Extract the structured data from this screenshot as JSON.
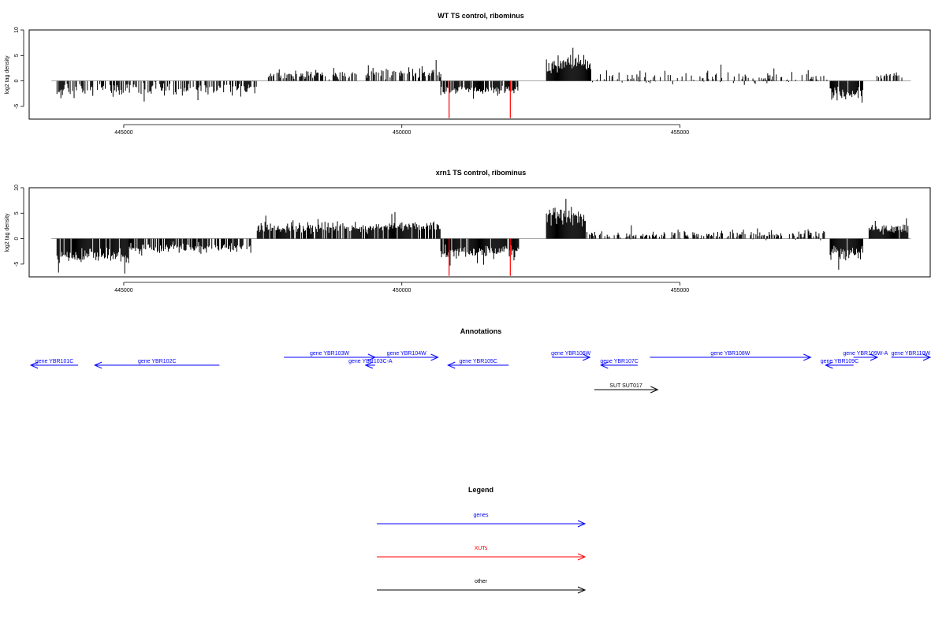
{
  "chart_data": [
    {
      "type": "bar",
      "title": "WT TS control, ribominus",
      "ylabel": "log2 tag density",
      "xlabel": "",
      "xlim": [
        443300,
        459500
      ],
      "ylim": [
        -7.5,
        10
      ],
      "yticks": [
        -5,
        0,
        5,
        10
      ],
      "xticks": [
        445000,
        450000,
        455000
      ],
      "xtick_labels": [
        "445000",
        "450000",
        "455000"
      ],
      "baseline": 0,
      "segments": [
        {
          "start": 443800,
          "end": 447400,
          "seed": 11,
          "density": 0.55,
          "mean": -1.6,
          "spread": 1.3,
          "min": -5.0,
          "max": 3.0
        },
        {
          "start": 447600,
          "end": 449200,
          "seed": 12,
          "density": 0.55,
          "mean": 1.2,
          "spread": 1.0,
          "min": 0,
          "max": 3.5
        },
        {
          "start": 449300,
          "end": 450700,
          "seed": 13,
          "density": 0.55,
          "mean": 1.6,
          "spread": 1.3,
          "min": 0,
          "max": 4.5
        },
        {
          "start": 450700,
          "end": 452100,
          "seed": 14,
          "density": 0.85,
          "mean": -1.8,
          "spread": 1.0,
          "min": -3.5,
          "max": 0
        },
        {
          "start": 452600,
          "end": 453400,
          "seed": 15,
          "density": 1.0,
          "mean": 3.6,
          "spread": 1.8,
          "min": 0.5,
          "max": 8.0
        },
        {
          "start": 453400,
          "end": 457700,
          "seed": 16,
          "density": 0.35,
          "mean": 0.6,
          "spread": 1.3,
          "min": -2.5,
          "max": 4.5
        },
        {
          "start": 457700,
          "end": 458300,
          "seed": 17,
          "density": 0.9,
          "mean": -2.6,
          "spread": 1.3,
          "min": -6.0,
          "max": 0
        },
        {
          "start": 458500,
          "end": 459000,
          "seed": 18,
          "density": 0.5,
          "mean": 1.0,
          "spread": 0.6,
          "min": 0,
          "max": 2.0
        }
      ],
      "highlights": [
        {
          "x": 450850,
          "y": -7.3,
          "color": "#ff0000"
        },
        {
          "x": 451950,
          "y": -7.3,
          "color": "#ff0000"
        }
      ]
    },
    {
      "type": "bar",
      "title": "xrn1 TS control, ribominus",
      "ylabel": "log2 tag density",
      "xlabel": "",
      "xlim": [
        443300,
        459500
      ],
      "ylim": [
        -7.5,
        10
      ],
      "yticks": [
        -5,
        0,
        5,
        10
      ],
      "xticks": [
        445000,
        450000,
        455000
      ],
      "xtick_labels": [
        "445000",
        "450000",
        "455000"
      ],
      "baseline": 0,
      "segments": [
        {
          "start": 443800,
          "end": 445100,
          "seed": 21,
          "density": 0.95,
          "mean": -3.3,
          "spread": 1.4,
          "min": -7.0,
          "max": 0
        },
        {
          "start": 445100,
          "end": 447300,
          "seed": 22,
          "density": 0.75,
          "mean": -1.8,
          "spread": 1.0,
          "min": -5.0,
          "max": 0
        },
        {
          "start": 447400,
          "end": 449400,
          "seed": 23,
          "density": 0.85,
          "mean": 2.1,
          "spread": 1.1,
          "min": 0,
          "max": 5.8
        },
        {
          "start": 449400,
          "end": 450700,
          "seed": 24,
          "density": 0.85,
          "mean": 2.4,
          "spread": 1.1,
          "min": 0,
          "max": 5.2
        },
        {
          "start": 450700,
          "end": 452100,
          "seed": 25,
          "density": 0.9,
          "mean": -2.5,
          "spread": 1.2,
          "min": -5.5,
          "max": 0
        },
        {
          "start": 452600,
          "end": 453300,
          "seed": 26,
          "density": 1.0,
          "mean": 4.3,
          "spread": 2.0,
          "min": 0.5,
          "max": 9.5
        },
        {
          "start": 453300,
          "end": 457600,
          "seed": 27,
          "density": 0.55,
          "mean": 0.8,
          "spread": 0.9,
          "min": -4.5,
          "max": 3.0
        },
        {
          "start": 457700,
          "end": 458300,
          "seed": 28,
          "density": 0.95,
          "mean": -3.0,
          "spread": 1.5,
          "min": -6.5,
          "max": 0
        },
        {
          "start": 458400,
          "end": 459100,
          "seed": 29,
          "density": 0.9,
          "mean": 2.0,
          "spread": 0.9,
          "min": 0,
          "max": 4.0
        }
      ],
      "highlights": [
        {
          "x": 450850,
          "y": -7.3,
          "color": "#ff0000"
        },
        {
          "x": 451950,
          "y": -7.3,
          "color": "#ff0000"
        }
      ]
    }
  ],
  "annotations": {
    "title": "Annotations",
    "gene_color": "#0000ff",
    "other_color": "#000000",
    "items": [
      {
        "label": "gene YBR101C",
        "start": 443330,
        "end": 444180,
        "row": 1,
        "strand": "-",
        "kind": "gene"
      },
      {
        "label": "gene YBR102C",
        "start": 444480,
        "end": 446720,
        "row": 1,
        "strand": "-",
        "kind": "gene"
      },
      {
        "label": "gene YBR103W",
        "start": 447880,
        "end": 449520,
        "row": 0,
        "strand": "+",
        "kind": "gene"
      },
      {
        "label": "gene YBR103C-A",
        "start": 449350,
        "end": 449520,
        "row": 1,
        "strand": "-",
        "kind": "gene"
      },
      {
        "label": "gene YBR104W",
        "start": 449520,
        "end": 450650,
        "row": 0,
        "strand": "+",
        "kind": "gene"
      },
      {
        "label": "gene YBR105C",
        "start": 450830,
        "end": 451920,
        "row": 1,
        "strand": "-",
        "kind": "gene"
      },
      {
        "label": "gene YBR106W",
        "start": 452700,
        "end": 453380,
        "row": 0,
        "strand": "+",
        "kind": "gene"
      },
      {
        "label": "gene YBR107C",
        "start": 453580,
        "end": 454240,
        "row": 1,
        "strand": "-",
        "kind": "gene"
      },
      {
        "label": "gene YBR108W",
        "start": 454460,
        "end": 457350,
        "row": 0,
        "strand": "+",
        "kind": "gene"
      },
      {
        "label": "gene YBR109C",
        "start": 457620,
        "end": 458120,
        "row": 1,
        "strand": "-",
        "kind": "gene"
      },
      {
        "label": "gene YBR109W-A",
        "start": 458120,
        "end": 458550,
        "row": 0,
        "strand": "+",
        "kind": "gene"
      },
      {
        "label": "gene YBR110W",
        "start": 458800,
        "end": 459500,
        "row": 0,
        "strand": "+",
        "kind": "gene"
      },
      {
        "label": "SUT SUT017",
        "start": 453460,
        "end": 454600,
        "row": 2,
        "strand": "+",
        "kind": "other"
      }
    ]
  },
  "legend": {
    "title": "Legend",
    "items": [
      {
        "label": "genes",
        "color": "#0000ff"
      },
      {
        "label": "XUTs",
        "color": "#ff0000"
      },
      {
        "label": "other",
        "color": "#000000"
      }
    ]
  }
}
